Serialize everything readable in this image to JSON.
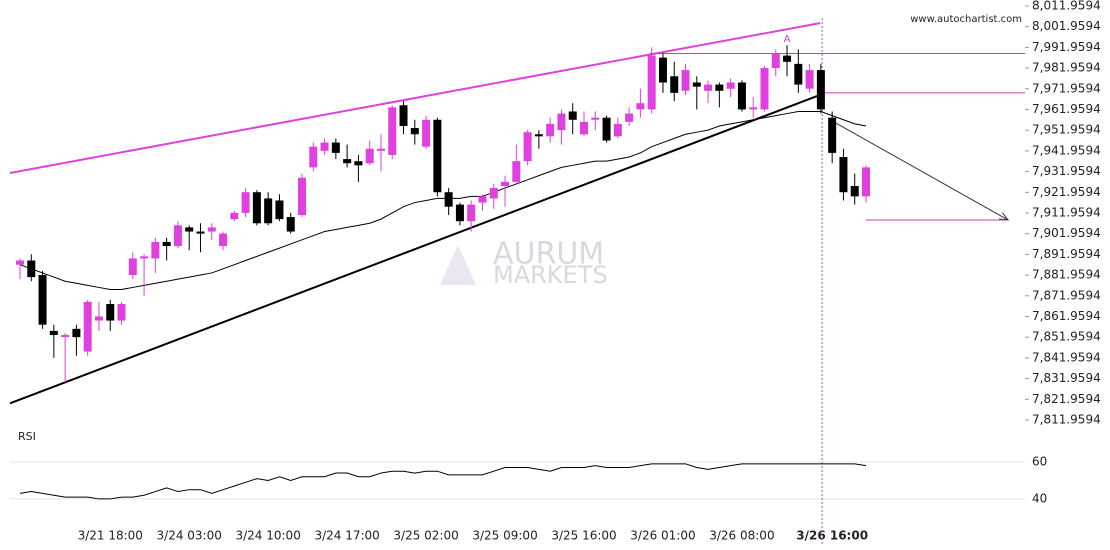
{
  "chart_data": {
    "type": "candlestick",
    "source": "www.autochartist.com",
    "watermark_top": "AURUM",
    "watermark_bottom": "MARKETS",
    "pattern_label": "A",
    "up_color": "#e040e0",
    "down_color": "#000000",
    "categories": [
      null,
      null,
      null,
      null,
      null,
      null,
      null,
      null,
      "3/21 18:00",
      null,
      null,
      null,
      null,
      null,
      null,
      "3/24 03:00",
      null,
      null,
      null,
      null,
      null,
      null,
      "3/24 10:00",
      null,
      null,
      null,
      null,
      null,
      null,
      "3/24 17:00",
      null,
      null,
      null,
      null,
      null,
      null,
      "3/25 02:00",
      null,
      null,
      null,
      null,
      null,
      null,
      "3/25 09:00",
      null,
      null,
      null,
      null,
      null,
      null,
      "3/25 16:00",
      null,
      null,
      null,
      null,
      null,
      null,
      "3/26 01:00",
      null,
      null,
      null,
      null,
      null,
      null,
      "3/26 08:00",
      null,
      null,
      null,
      null,
      null,
      null,
      null,
      "3/26 16:00",
      null,
      null,
      null
    ],
    "open": [
      7887,
      7889,
      7882,
      7855,
      7852,
      7856,
      7845,
      7860,
      7868,
      7860,
      7882,
      7890,
      7890,
      7898,
      7896,
      7905,
      7903,
      7903,
      7896,
      7909,
      7912,
      7922,
      7919,
      7918,
      7910,
      7911,
      7934,
      7942,
      7946,
      7938,
      7937,
      7936,
      7942,
      7940,
      7964,
      7953,
      7944,
      7957,
      7922,
      7916,
      7908,
      7917,
      7919,
      7925,
      7927,
      7937,
      7950,
      7949,
      7952,
      7961,
      7950,
      7957,
      7958,
      7949,
      7956,
      7962,
      7962,
      7987,
      7978,
      7971,
      7975,
      7971,
      7974,
      7972,
      7975,
      7962,
      7962,
      7982,
      7988,
      7984,
      7972,
      7981,
      7958,
      7939,
      7925,
      7920
    ],
    "high": [
      7890,
      7892,
      7884,
      7858,
      7854,
      7858,
      7870,
      7869,
      7870,
      7869,
      7893,
      7892,
      7900,
      7900,
      7908,
      7906,
      7907,
      7907,
      7903,
      7913,
      7924,
      7923,
      7922,
      7921,
      7912,
      7931,
      7946,
      7948,
      7948,
      7945,
      7940,
      7947,
      7950,
      7964,
      7966,
      7957,
      7959,
      7958,
      7924,
      7917,
      7918,
      7921,
      7926,
      7930,
      7945,
      7952,
      7952,
      7958,
      7962,
      7965,
      7961,
      7961,
      7959,
      7958,
      7963,
      7972,
      7992,
      7989,
      7985,
      7984,
      7978,
      7976,
      7975,
      7977,
      7976,
      7968,
      7983,
      7991,
      7993,
      7991,
      7984,
      7984,
      7961,
      7943,
      7931,
      7935
    ],
    "low": [
      7880,
      7879,
      7856,
      7842,
      7830,
      7843,
      7843,
      7855,
      7855,
      7858,
      7880,
      7872,
      7883,
      7889,
      7895,
      7894,
      7893,
      7899,
      7894,
      7908,
      7910,
      7906,
      7906,
      7908,
      7902,
      7910,
      7932,
      7940,
      7938,
      7934,
      7927,
      7935,
      7932,
      7938,
      7950,
      7945,
      7943,
      7920,
      7911,
      7906,
      7903,
      7913,
      7914,
      7915,
      7926,
      7935,
      7943,
      7946,
      7945,
      7950,
      7949,
      7952,
      7946,
      7948,
      7954,
      7958,
      7960,
      7970,
      7966,
      7969,
      7962,
      7965,
      7963,
      7968,
      7961,
      7958,
      7961,
      7978,
      7978,
      7970,
      7970,
      7960,
      7936,
      7918,
      7916,
      7917
    ],
    "close": [
      7889,
      7881,
      7858,
      7853,
      7853,
      7852,
      7869,
      7862,
      7860,
      7868,
      7890,
      7891,
      7898,
      7896,
      7906,
      7903,
      7902,
      7905,
      7902,
      7912,
      7922,
      7907,
      7907,
      7909,
      7903,
      7929,
      7944,
      7946,
      7941,
      7936,
      7935,
      7943,
      7943,
      7963,
      7954,
      7950,
      7957,
      7922,
      7915,
      7908,
      7916,
      7920,
      7924,
      7927,
      7937,
      7951,
      7949,
      7955,
      7960,
      7957,
      7956,
      7958,
      7947,
      7955,
      7960,
      7965,
      7988,
      7975,
      7970,
      7981,
      7973,
      7974,
      7971,
      7975,
      7962,
      7963,
      7982,
      7989,
      7985,
      7974,
      7981,
      7962,
      7941,
      7922,
      7920,
      7934
    ],
    "moving_average": [
      7887,
      7885,
      7883,
      7881,
      7879,
      7878,
      7877,
      7876,
      7875,
      7875,
      7876,
      7877,
      7878,
      7879,
      7880,
      7881,
      7882,
      7883,
      7885,
      7887,
      7889,
      7891,
      7893,
      7895,
      7897,
      7899,
      7901,
      7903,
      7904,
      7905,
      7906,
      7907,
      7909,
      7912,
      7915,
      7917,
      7918,
      7919,
      7919,
      7919,
      7920,
      7920,
      7922,
      7924,
      7926,
      7928,
      7930,
      7932,
      7934,
      7935,
      7936,
      7937,
      7937,
      7938,
      7939,
      7941,
      7944,
      7946,
      7948,
      7950,
      7951,
      7952,
      7954,
      7955,
      7956,
      7957,
      7958,
      7959,
      7960,
      7961,
      7961,
      7961,
      7959,
      7957,
      7955,
      7954
    ],
    "trend_lines": [
      {
        "color": "#dd44dd",
        "start": 7931.3,
        "end": 8003.7
      },
      {
        "color": "#000000",
        "start": 7820,
        "end": 7969
      }
    ],
    "levels": [
      {
        "value": 7989,
        "color": "#c040c0"
      },
      {
        "value": 7970,
        "color": "#c040c0"
      },
      {
        "value": 7908.6,
        "color": "#c040c0"
      }
    ],
    "forecast": {
      "from": 7957,
      "to": 7908.6,
      "color": "#333333"
    },
    "ylim": [
      7809.54,
      8014.86
    ],
    "yticks": [
      {
        "value": 8011.9594,
        "label": "8,011.9594"
      },
      {
        "value": 8001.9594,
        "label": "8,001.9594"
      },
      {
        "value": 7991.9594,
        "label": "7,991.9594"
      },
      {
        "value": 7981.9594,
        "label": "7,981.9594"
      },
      {
        "value": 7971.9594,
        "label": "7,971.9594"
      },
      {
        "value": 7961.9594,
        "label": "7,961.9594"
      },
      {
        "value": 7951.9594,
        "label": "7,951.9594"
      },
      {
        "value": 7941.9594,
        "label": "7,941.9594"
      },
      {
        "value": 7931.9594,
        "label": "7,931.9594"
      },
      {
        "value": 7921.9594,
        "label": "7,921.9594"
      },
      {
        "value": 7911.9594,
        "label": "7,911.9594"
      },
      {
        "value": 7901.9594,
        "label": "7,901.9594"
      },
      {
        "value": 7891.9594,
        "label": "7,891.9594"
      },
      {
        "value": 7881.9594,
        "label": "7,881.9594"
      },
      {
        "value": 7871.9594,
        "label": "7,871.9594"
      },
      {
        "value": 7861.9594,
        "label": "7,861.9594"
      },
      {
        "value": 7851.9594,
        "label": "7,851.9594"
      },
      {
        "value": 7841.9594,
        "label": "7,841.9594"
      },
      {
        "value": 7831.9594,
        "label": "7,831.9594"
      },
      {
        "value": 7821.9594,
        "label": "7,821.9594"
      },
      {
        "value": 7811.9594,
        "label": "7,811.9594"
      }
    ],
    "rsi": {
      "label": "RSI",
      "color": "#000000",
      "values": [
        43,
        44,
        43,
        42,
        41,
        41,
        41,
        40,
        40,
        41,
        41,
        42,
        44,
        46,
        44,
        45,
        45,
        43,
        45,
        47,
        49,
        51,
        50,
        52,
        50,
        52,
        52,
        52,
        54,
        54,
        52,
        52,
        54,
        55,
        55,
        54,
        55,
        55,
        53,
        53,
        53,
        53,
        55,
        57,
        57,
        57,
        56,
        55,
        57,
        57,
        57,
        58,
        57,
        57,
        57,
        58,
        59,
        59,
        59,
        59,
        57,
        56,
        57,
        58,
        59,
        59,
        59,
        59,
        59,
        59,
        59,
        59,
        59,
        59,
        59,
        58
      ],
      "ylim": [
        28.6,
        77.3
      ],
      "yticks": [
        60,
        40
      ],
      "grid": true
    }
  }
}
